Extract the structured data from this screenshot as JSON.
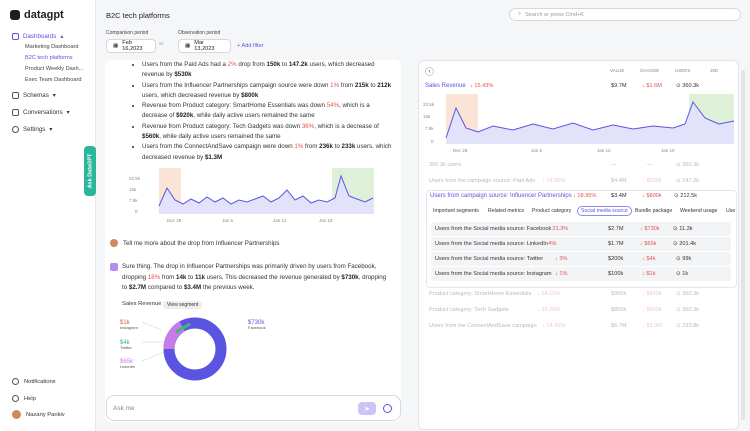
{
  "app": {
    "logo": "datagpt"
  },
  "sidebar": {
    "dashboards": "Dashboards",
    "items": [
      "Marketing Dashboard",
      "B2C tech platforms",
      "Product Weekly Dash...",
      "Exec Team Dashboard"
    ],
    "schemas": "Schemas",
    "conversations": "Conversations",
    "settings": "Settings",
    "ask_tab": "Ask DataGPT",
    "notifications": "Notifications",
    "help": "Help",
    "user": "Nazariy Pankiv"
  },
  "header": {
    "title": "B2C tech platforms",
    "search_placeholder": "Search or press Cmd+K",
    "comparison_label": "Comparison period",
    "comparison_value": "Feb 16,2023",
    "vs_label": "vs",
    "observation_label": "Observation period",
    "observation_value": "Mar 13,2023",
    "add_filter": "+ Add filter"
  },
  "chat": {
    "b1a": "Users from the Paid Ads had a ",
    "b1b": "2%",
    "b1c": " drop from ",
    "b1d": "150k",
    "b1e": " to ",
    "b1f": "147.2k",
    "b1g": " users, which decreased revenue by ",
    "b1h": "$530k",
    "b2a": "Users from the Influencer Partnerships campaign source were down ",
    "b2b": "1%",
    "b2c": " from ",
    "b2d": "215k",
    "b2e": " to ",
    "b2f": "212k",
    "b2g": " users, which decreased revenue by ",
    "b2h": "$800k",
    "b3a": "Revenue from Product category: SmartHome Essentials was down ",
    "b3b": "54%",
    "b3c": ", which is a decrease of ",
    "b3d": "$920k",
    "b3e": ", while daily active users remained the same",
    "b4a": "Revenue from Product category: Tech Gadgets was down ",
    "b4b": "36%",
    "b4c": ", which is a decrease of ",
    "b4d": "$560k",
    "b4e": ", while daily active users remained the same",
    "b5a": "Users from the ConnectAndSave campaign were down ",
    "b5b": "1%",
    "b5c": " from ",
    "b5d": "236k",
    "b5e": " to ",
    "b5f": "233k",
    "b5g": " users, which decreased revenue by ",
    "b5h": "$1.3M",
    "mini_chart": {
      "y_ticks": [
        "22.5k",
        "15k",
        "7.5k",
        "0"
      ],
      "x_ticks": [
        "Dec 28",
        "Jan 5",
        "Jan 12",
        "Jan 19"
      ]
    },
    "user_question": "Tell me more about the drop from Influencer Partnerships",
    "ans1": "Sure thing. The drop in Influencer Partnerships was primarily driven by users from Facebook, dropping ",
    "ans2": "18%",
    "ans3": " from ",
    "ans4": "14k",
    "ans5": " to ",
    "ans6": "11k",
    "ans7": " users. This decreased the revenue generated by ",
    "ans8": "$730k",
    "ans9": ", dropping to ",
    "ans10": "$2.7M",
    "ans11": " compared to ",
    "ans12": "$3.4M",
    "ans13": " the previous week.",
    "segment_title": "Sales Revenue",
    "segment_button": "View segment",
    "donut": {
      "left": [
        {
          "value": "$1k",
          "label": "Instagram",
          "color": "#e0534f"
        },
        {
          "value": "$4k",
          "label": "Twitter",
          "color": "#3cb878"
        },
        {
          "value": "$65k",
          "label": "LinkedIn",
          "color": "#c77de8"
        }
      ],
      "right": {
        "value": "$730k",
        "label": "Facebook",
        "color": "#5a54e0"
      }
    },
    "ask_placeholder": "Ask me"
  },
  "panel": {
    "columns": [
      "VALUE",
      "CHANGE",
      "USERS",
      "30D"
    ],
    "main_metric": {
      "name": "Sales Revenue",
      "change": "↓ 15.43%",
      "value": "$9.7M",
      "delta": "↓ $1.6M",
      "users": "⊙ 360.3k"
    },
    "y_ticks": [
      "22.5k",
      "15k",
      "7.5k",
      "0"
    ],
    "x_ticks": [
      "Dec 28",
      "Jan 5",
      "Jan 12",
      "Jan 19"
    ],
    "rows_top": [
      {
        "name": "360.3k users",
        "value": "—",
        "delta": "—",
        "users": "⊙ 360.3k"
      },
      {
        "name": "Users from the campaign source: Paid Ads",
        "change": "↓ 14.05%",
        "value": "$4.4M",
        "delta": "↓ $530k",
        "users": "⊙ 147.2k"
      }
    ],
    "focus": {
      "name": "Users from campaign source: Influencer Partnerships",
      "change": "↓ 18.95%",
      "value": "$3.4M",
      "delta": "↓ $800k",
      "users": "⊙ 212.5k"
    },
    "tabs": [
      "Important segments",
      "Related metrics",
      "Product category",
      "Social media source",
      "Bundle package",
      "Weekend usage",
      "Use"
    ],
    "social_rows": [
      {
        "name": "Users from the Social media source: Facebook",
        "change": "↓ 21.3%",
        "value": "$2.7M",
        "delta": "↓ $730k",
        "users": "⊙ 11.3k"
      },
      {
        "name": "Users from the Social media source: LinkedIn",
        "change": "↓ 4%",
        "value": "$1.7M",
        "delta": "↓ $65k",
        "users": "⊙ 201.4k"
      },
      {
        "name": "Users from the Social media source: Twitter",
        "change": "↓ 3%",
        "value": "$200k",
        "delta": "↓ $4k",
        "users": "⊙ 99k"
      },
      {
        "name": "Users from the Social media source: Instagram",
        "change": "↓ 1%",
        "value": "$100k",
        "delta": "↓ $1k",
        "users": "⊙ 1k"
      }
    ],
    "rows_bottom": [
      {
        "name": "Product category: SmartHome Essentials",
        "change": "↓ 54.15%",
        "value": "$900k",
        "delta": "↓ $920k",
        "users": "⊙ 360.3k"
      },
      {
        "name": "Product category: Tech Gadgets",
        "change": "↓ 36.26%",
        "value": "$800k",
        "delta": "↓ $560k",
        "users": "⊙ 360.3k"
      },
      {
        "name": "Users from the ConnectAndSave campaign",
        "change": "↓ 14.43%",
        "value": "$6.7M",
        "delta": "↓ $1.3M",
        "users": "⊙ 233.8k"
      }
    ]
  },
  "colors": {
    "accent": "#5a54e0",
    "negative": "#e0534f",
    "teal": "#2bb59b"
  }
}
